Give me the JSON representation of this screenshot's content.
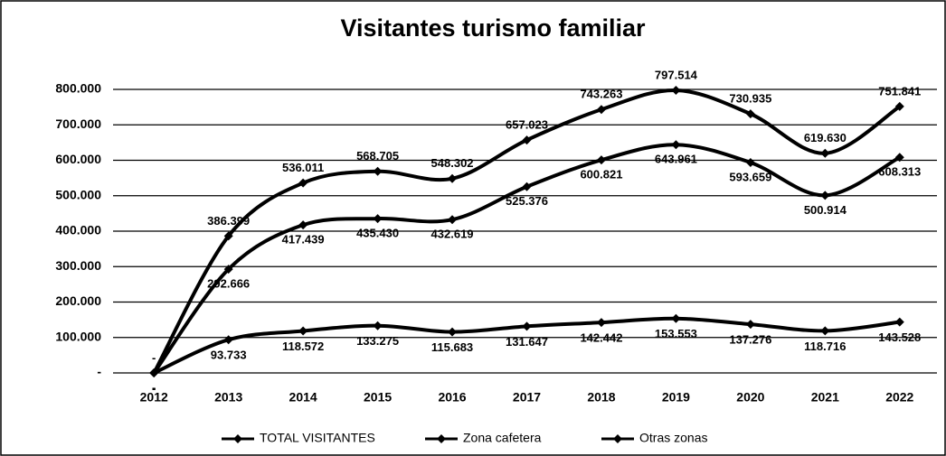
{
  "chart_data": {
    "type": "line",
    "title": "Visitantes turismo familiar",
    "categories": [
      "2012",
      "2013",
      "2014",
      "2015",
      "2016",
      "2017",
      "2018",
      "2019",
      "2020",
      "2021",
      "2022"
    ],
    "series": [
      {
        "name": "TOTAL VISITANTES",
        "color": "#000000",
        "values": [
          0,
          386399,
          536011,
          568705,
          548302,
          657023,
          743263,
          797514,
          730935,
          619630,
          751841
        ],
        "value_labels": [
          "-",
          "386.399",
          "536.011",
          "568.705",
          "548.302",
          "657.023",
          "743.263",
          "797.514",
          "730.935",
          "619.630",
          "751.841"
        ]
      },
      {
        "name": "Zona cafetera",
        "color": "#000000",
        "values": [
          0,
          292666,
          417439,
          435430,
          432619,
          525376,
          600821,
          643961,
          593659,
          500914,
          608313
        ],
        "value_labels": [
          "-",
          "292.666",
          "417.439",
          "435.430",
          "432.619",
          "525.376",
          "600.821",
          "643.961",
          "593.659",
          "500.914",
          "608.313"
        ]
      },
      {
        "name": "Otras zonas",
        "color": "#000000",
        "values": [
          0,
          93733,
          118572,
          133275,
          115683,
          131647,
          142442,
          153553,
          137276,
          118716,
          143528
        ],
        "value_labels": [
          "-",
          "93.733",
          "118.572",
          "133.275",
          "115.683",
          "131.647",
          "142.442",
          "153.553",
          "137.276",
          "118.716",
          "143.528"
        ]
      }
    ],
    "ylim": [
      0,
      800000
    ],
    "yticks": [
      {
        "value": 0,
        "label": "-"
      },
      {
        "value": 100000,
        "label": "100.000"
      },
      {
        "value": 200000,
        "label": "200.000"
      },
      {
        "value": 300000,
        "label": "300.000"
      },
      {
        "value": 400000,
        "label": "400.000"
      },
      {
        "value": 500000,
        "label": "500.000"
      },
      {
        "value": 600000,
        "label": "600.000"
      },
      {
        "value": 700000,
        "label": "700.000"
      },
      {
        "value": 800000,
        "label": "800.000"
      }
    ],
    "grid": true,
    "smooth": true,
    "legend": "bottom"
  }
}
